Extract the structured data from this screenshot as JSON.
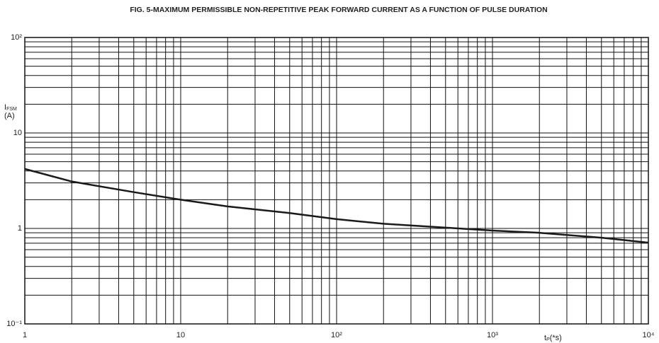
{
  "chart_data": {
    "type": "line",
    "title": "FIG. 5-MAXIMUM PERMISSIBLE NON-REPETITIVE PEAK FORWARD CURRENT AS A FUNCTION OF PULSE DURATION",
    "y_label": {
      "main": "I",
      "sub": "FSM",
      "unit": "(A)"
    },
    "x_label": {
      "main": "t",
      "sub": "P",
      "unit": "(*s)"
    },
    "log_x": true,
    "log_y": true,
    "grid": true,
    "x": [
      1,
      2,
      5,
      10,
      20,
      50,
      100,
      200,
      500,
      1000,
      2000,
      5000,
      10000
    ],
    "series": [
      {
        "name": "IFSM",
        "color": "#1a1a1a",
        "values": [
          4.2,
          3.1,
          2.4,
          2.0,
          1.7,
          1.45,
          1.25,
          1.12,
          1.02,
          0.95,
          0.9,
          0.8,
          0.71
        ]
      }
    ],
    "xlim": [
      1,
      10000
    ],
    "ylim": [
      0.1,
      100
    ],
    "xticks": [
      1,
      10,
      {
        "value": 100,
        "label": "10²"
      },
      {
        "value": 1000,
        "label": "10³"
      },
      {
        "value": 10000,
        "label": "10⁴"
      }
    ],
    "yticks": [
      {
        "value": 0.1,
        "label": "10⁻¹"
      },
      1,
      10,
      {
        "value": 100,
        "label": "10²"
      }
    ],
    "x_minor_ticks": [
      2,
      3,
      4,
      5,
      6,
      7,
      8,
      9,
      20,
      30,
      40,
      50,
      60,
      70,
      80,
      90,
      200,
      300,
      400,
      500,
      600,
      700,
      800,
      900,
      2000,
      3000,
      4000,
      5000,
      6000,
      7000,
      8000,
      9000
    ],
    "y_minor_ticks": [
      0.2,
      0.3,
      0.4,
      0.5,
      0.6,
      0.7,
      0.8,
      0.9,
      2,
      3,
      4,
      5,
      6,
      7,
      8,
      9,
      20,
      30,
      40,
      50,
      60,
      70,
      80,
      90
    ]
  }
}
